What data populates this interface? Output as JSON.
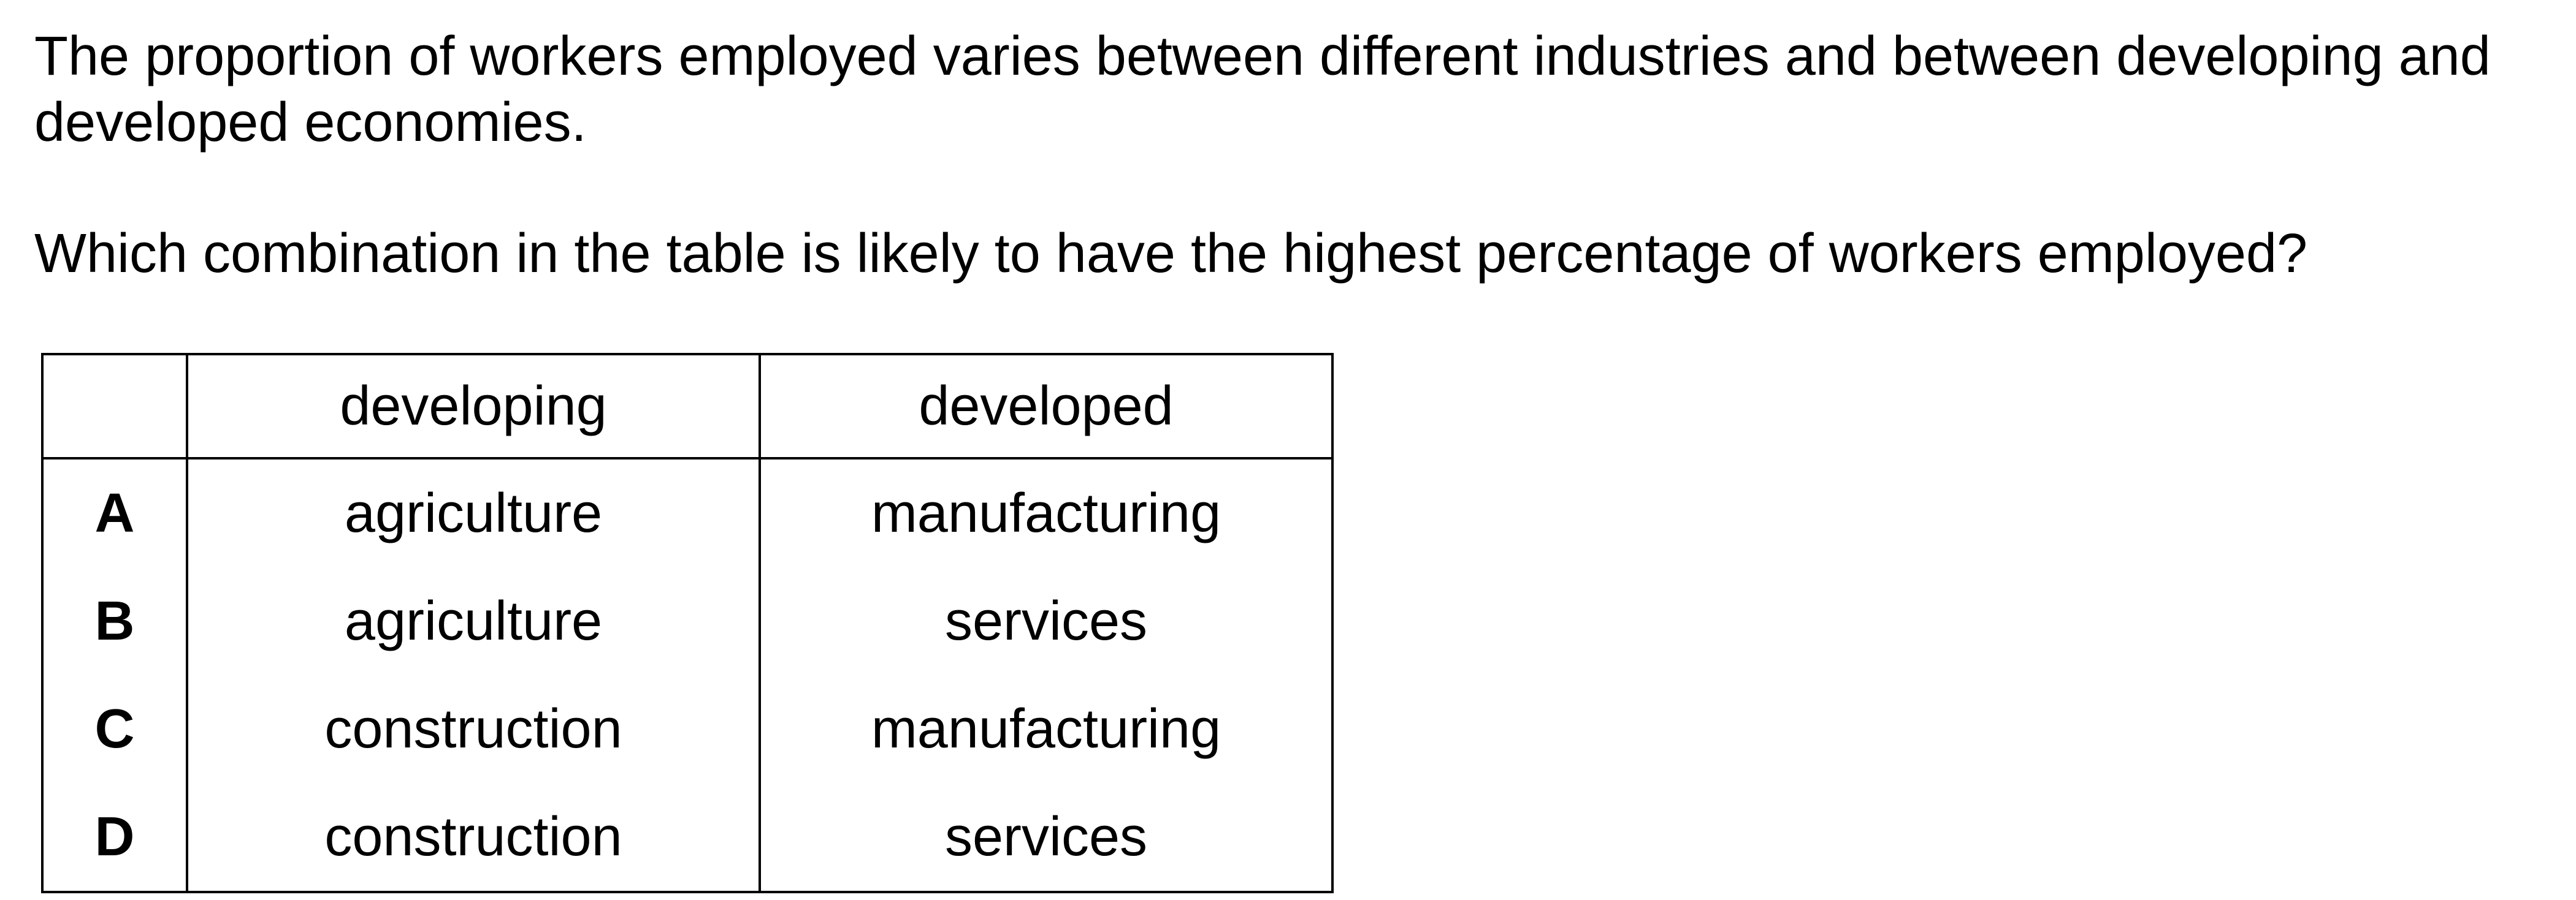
{
  "intro_text": "The proportion of workers employed varies between different industries and between developing and developed economies.",
  "question_text": "Which combination in the table is likely to have the highest percentage of workers employed?",
  "table": {
    "headers": [
      "",
      "developing",
      "developed"
    ],
    "rows": [
      {
        "letter": "A",
        "developing": "agriculture",
        "developed": "manufacturing"
      },
      {
        "letter": "B",
        "developing": "agriculture",
        "developed": "services"
      },
      {
        "letter": "C",
        "developing": "construction",
        "developed": "manufacturing"
      },
      {
        "letter": "D",
        "developing": "construction",
        "developed": "services"
      }
    ]
  }
}
